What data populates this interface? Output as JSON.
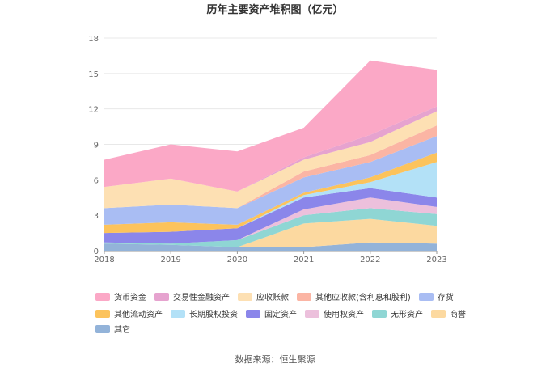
{
  "chart_data": {
    "type": "area",
    "stacked": true,
    "title": "历年主要资产堆积图（亿元）",
    "x": [
      "2018",
      "2019",
      "2020",
      "2021",
      "2022",
      "2023"
    ],
    "yticks": [
      "0",
      "3",
      "6",
      "9",
      "12",
      "15",
      "18"
    ],
    "ylim": [
      0,
      18
    ],
    "grid": true,
    "legend_position": "bottom",
    "series": [
      {
        "name": "其它",
        "color": "#93b3d9",
        "values": [
          0.6,
          0.5,
          0.3,
          0.3,
          0.7,
          0.6
        ]
      },
      {
        "name": "商誉",
        "color": "#fcd9a0",
        "values": [
          0.0,
          0.0,
          0.0,
          2.0,
          2.0,
          1.5
        ]
      },
      {
        "name": "无形资产",
        "color": "#8fd6d4",
        "values": [
          0.1,
          0.1,
          0.6,
          0.7,
          0.9,
          1.0
        ]
      },
      {
        "name": "使用权资产",
        "color": "#ecc0dc",
        "values": [
          0.0,
          0.0,
          0.0,
          0.5,
          0.9,
          0.6
        ]
      },
      {
        "name": "固定资产",
        "color": "#8b86ea",
        "values": [
          0.8,
          1.0,
          1.0,
          1.0,
          0.8,
          0.8
        ]
      },
      {
        "name": "长期股权投资",
        "color": "#b3e1f7",
        "values": [
          0.0,
          0.0,
          0.0,
          0.2,
          0.5,
          3.0
        ]
      },
      {
        "name": "其他流动资产",
        "color": "#fcc35c",
        "values": [
          0.7,
          0.8,
          0.3,
          0.2,
          0.4,
          0.8
        ]
      },
      {
        "name": "存货",
        "color": "#a9bdf3",
        "values": [
          1.4,
          1.5,
          1.4,
          1.3,
          1.3,
          1.4
        ]
      },
      {
        "name": "其他应收款(含利息和股利)",
        "color": "#fbb5a4",
        "values": [
          0.0,
          0.0,
          0.0,
          0.5,
          0.6,
          0.9
        ]
      },
      {
        "name": "应收账款",
        "color": "#fde0b3",
        "values": [
          1.8,
          2.2,
          1.4,
          1.0,
          1.1,
          1.2
        ]
      },
      {
        "name": "交易性金融资产",
        "color": "#e6a3cf",
        "values": [
          0.0,
          0.0,
          0.0,
          0.2,
          0.6,
          0.4
        ]
      },
      {
        "name": "货币资金",
        "color": "#fba8c6",
        "values": [
          2.3,
          2.9,
          3.4,
          2.5,
          6.3,
          3.1
        ]
      }
    ],
    "legend_order": [
      "货币资金",
      "交易性金融资产",
      "应收账款",
      "其他应收款(含利息和股利)",
      "存货",
      "其他流动资产",
      "长期股权投资",
      "固定资产",
      "使用权资产",
      "无形资产",
      "商誉",
      "其它"
    ],
    "legend_labels": [
      "货币资金",
      "交易性金融资产",
      "应收账款",
      "其他应收款(含利息和股利)",
      "存货",
      "其他流动资产",
      "长期股权投资",
      "固定资产",
      "使用权资产",
      "无形资产",
      "商誉",
      "其它"
    ],
    "source": "数据来源：恒生聚源"
  }
}
